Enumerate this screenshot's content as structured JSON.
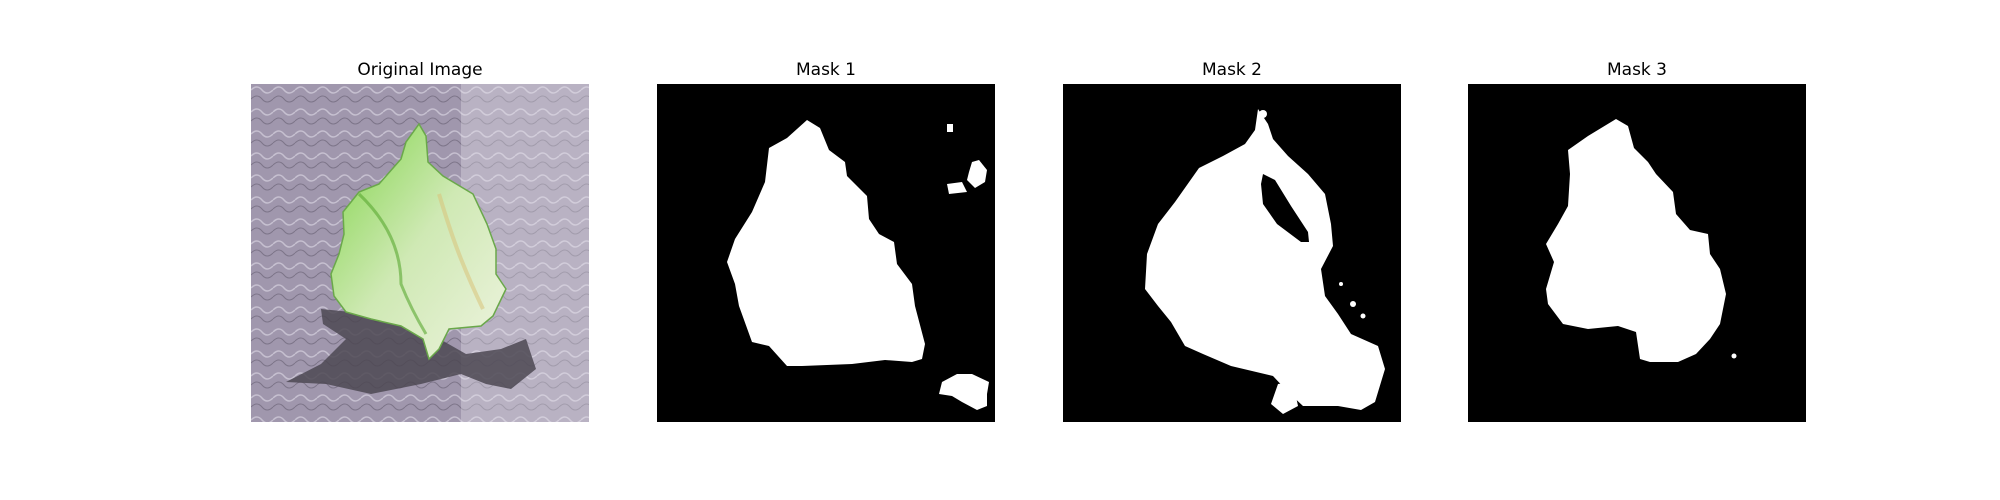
{
  "panels": [
    {
      "title": "Original Image",
      "kind": "photo",
      "subject": "green-leaf-on-textured-surface"
    },
    {
      "title": "Mask 1",
      "kind": "mask"
    },
    {
      "title": "Mask 2",
      "kind": "mask"
    },
    {
      "title": "Mask 3",
      "kind": "mask"
    }
  ],
  "colors": {
    "background": "#ffffff",
    "mask_bg": "#000000",
    "mask_fg": "#ffffff",
    "leaf": "#8fd160",
    "surface": "#9f96ad",
    "shadow": "#4c4852"
  }
}
